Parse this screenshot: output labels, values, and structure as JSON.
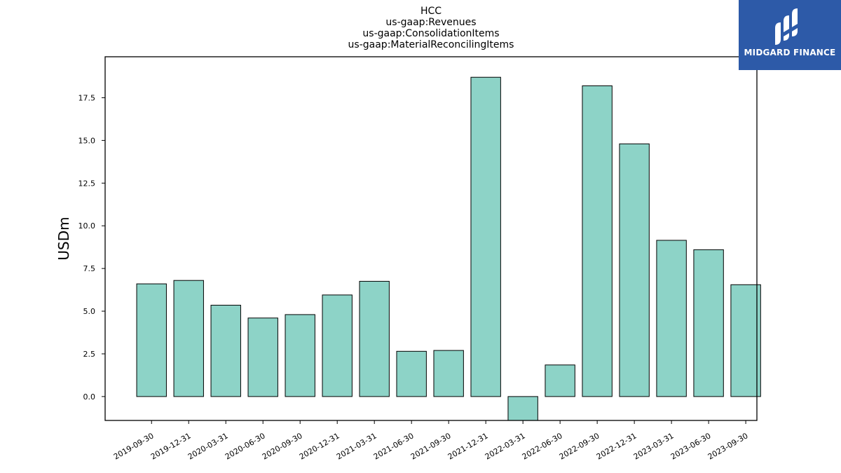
{
  "title_lines": [
    "HCC",
    "us-gaap:Revenues",
    "us-gaap:ConsolidationItems",
    "us-gaap:MaterialReconcilingItems"
  ],
  "logo": {
    "text": "MIDGARD FINANCE",
    "bg_color": "#2d5aa8"
  },
  "chart_data": {
    "type": "bar",
    "title": "HCC\nus-gaap:Revenues\nus-gaap:ConsolidationItems\nus-gaap:MaterialReconcilingItems",
    "ylabel": "USDm",
    "xlabel": "",
    "categories": [
      "2019-09-30",
      "2019-12-31",
      "2020-03-31",
      "2020-06-30",
      "2020-09-30",
      "2020-12-31",
      "2021-03-31",
      "2021-06-30",
      "2021-09-30",
      "2021-12-31",
      "2022-03-31",
      "2022-06-30",
      "2022-09-30",
      "2022-12-31",
      "2023-03-31",
      "2023-06-30",
      "2023-09-30"
    ],
    "values": [
      6.6,
      6.8,
      5.35,
      4.6,
      4.8,
      5.95,
      6.75,
      2.65,
      2.7,
      18.7,
      -1.4,
      1.85,
      18.2,
      14.8,
      9.15,
      8.6,
      6.55
    ],
    "ylim": [
      -1.4,
      19.9
    ],
    "yticks": [
      "0.0",
      "2.5",
      "5.0",
      "7.5",
      "10.0",
      "12.5",
      "15.0",
      "17.5"
    ],
    "bar_color": "#8dd3c7",
    "edge_color": "#000000",
    "grid": false
  }
}
